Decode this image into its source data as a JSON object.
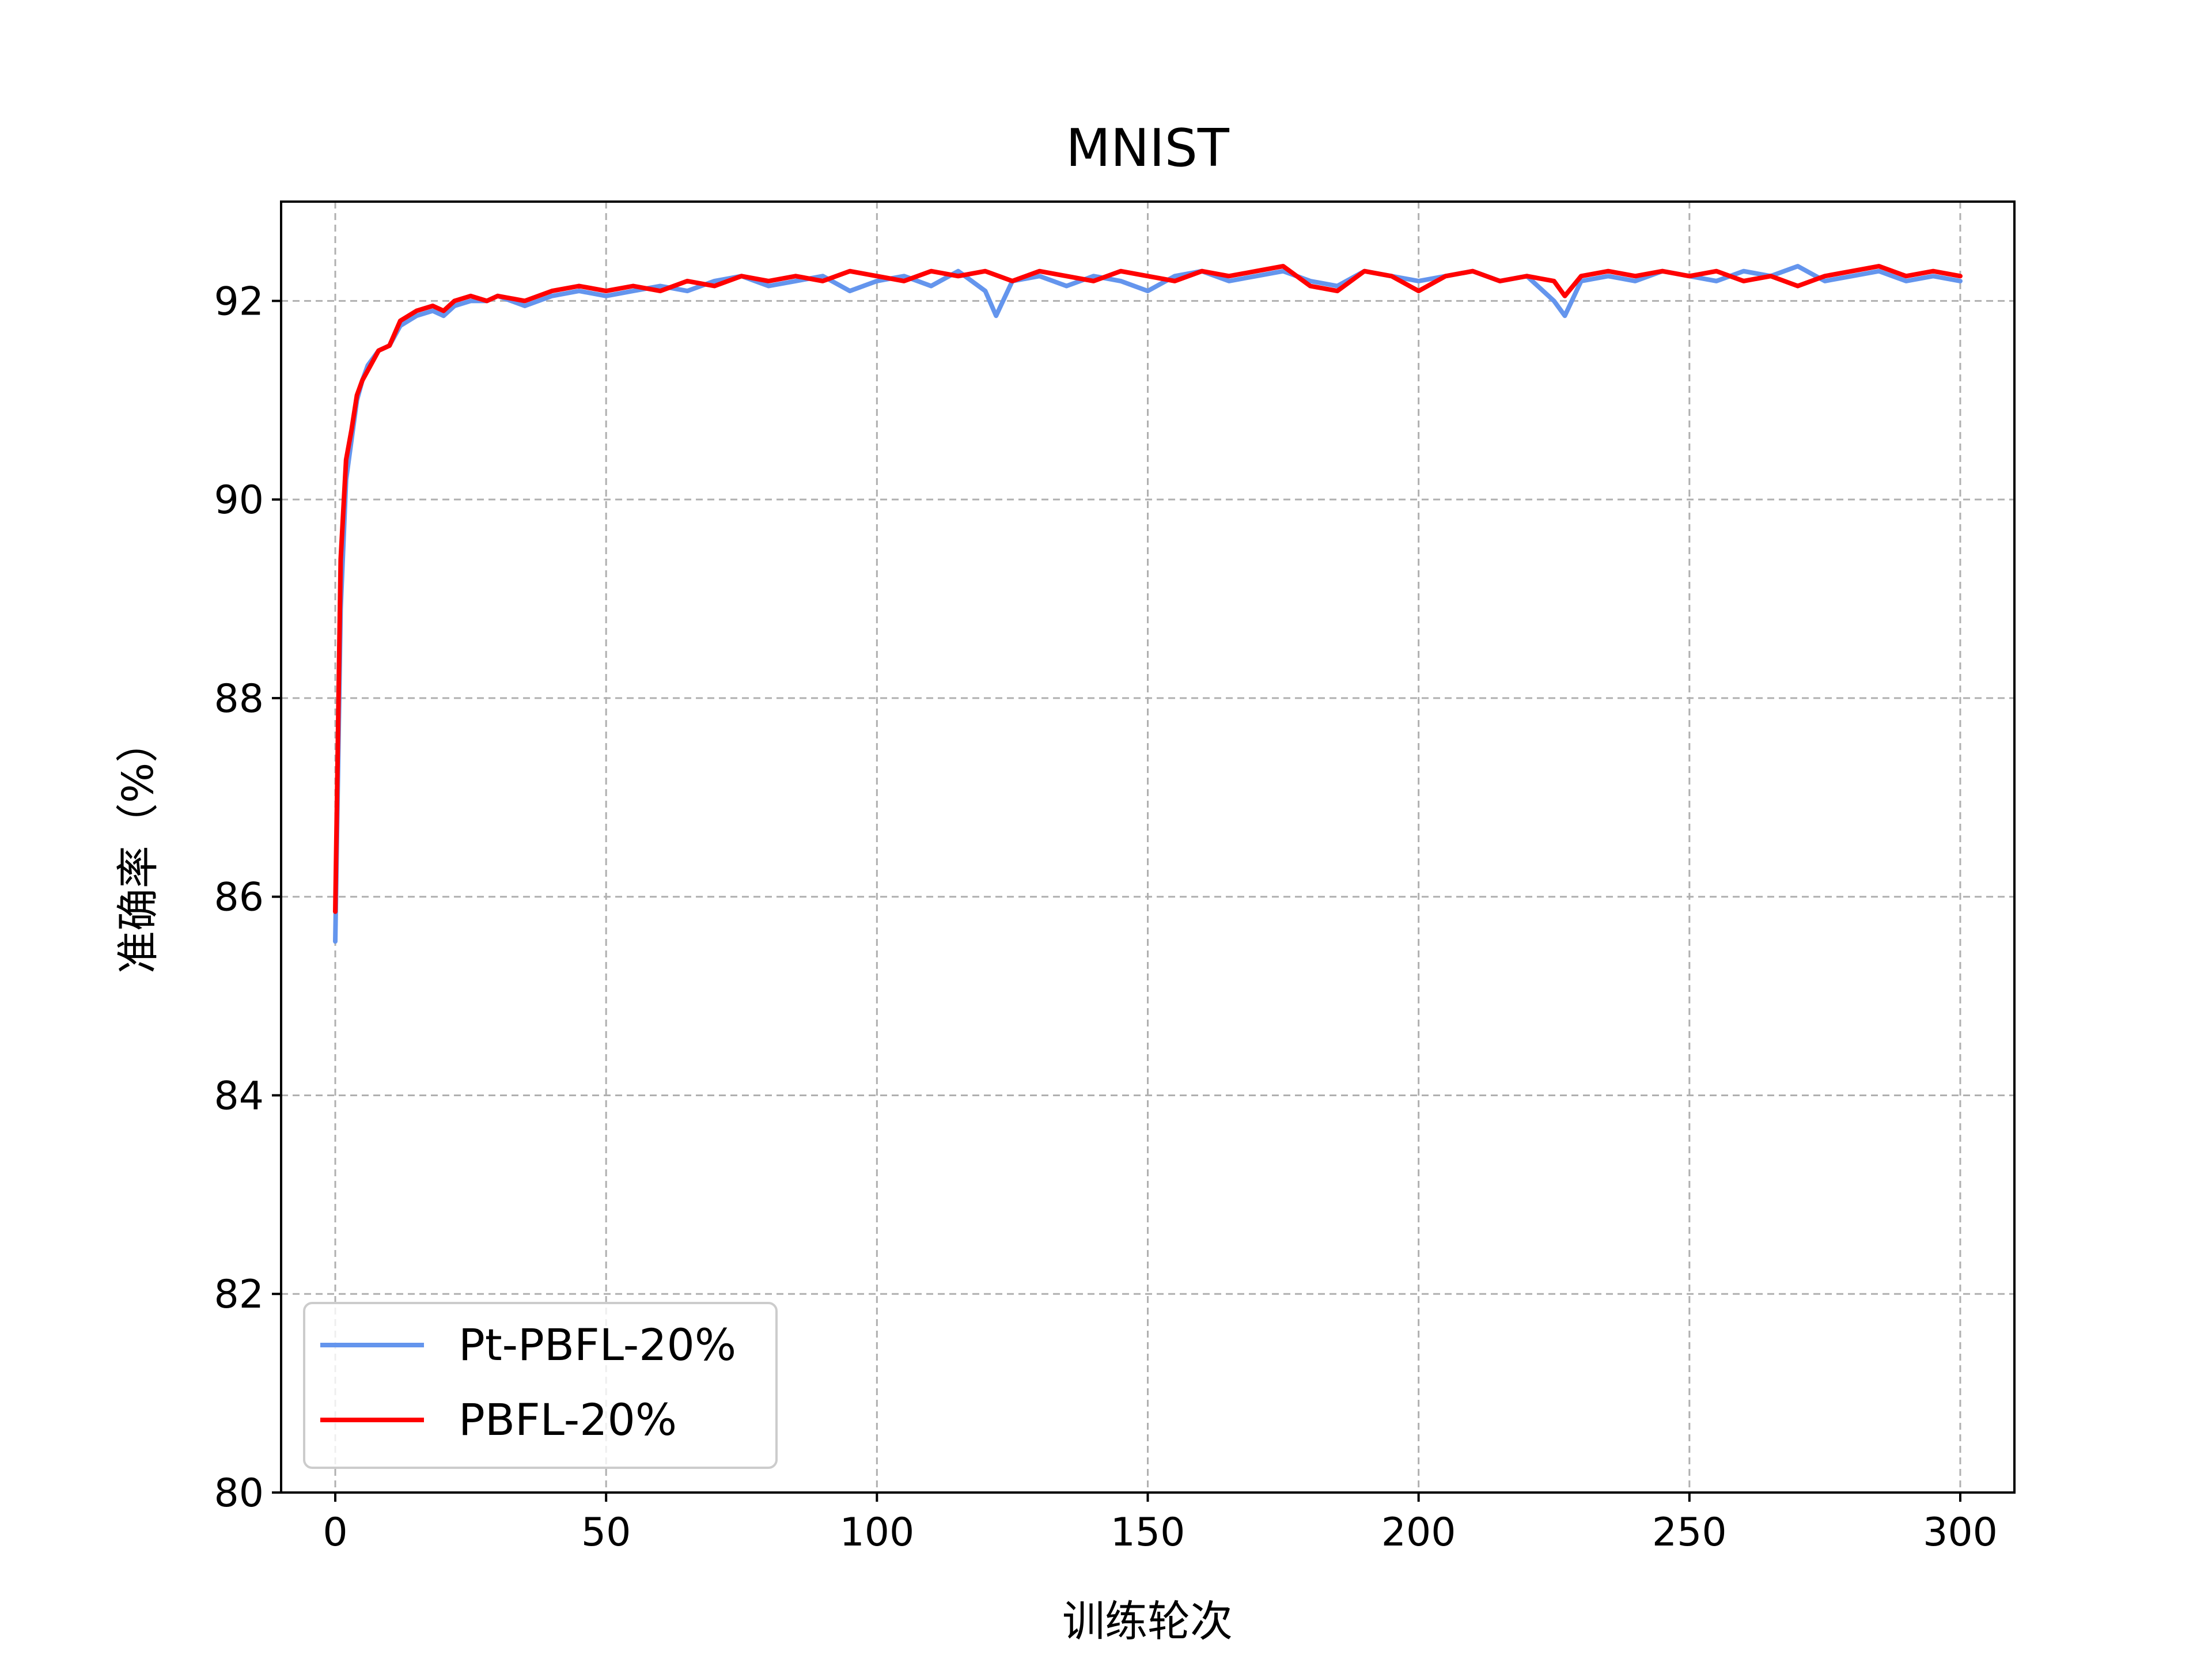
{
  "chart_data": {
    "type": "line",
    "title": "MNIST",
    "xlabel": "训练轮次",
    "ylabel": "准确率（%）",
    "xlim": [
      -10,
      310
    ],
    "ylim": [
      80,
      93
    ],
    "xticks": [
      0,
      50,
      100,
      150,
      200,
      250,
      300
    ],
    "yticks": [
      80,
      82,
      84,
      86,
      88,
      90,
      92
    ],
    "grid": true,
    "legend_position": "lower-left",
    "series": [
      {
        "name": "Pt-PBFL-20%",
        "color": "#6495ED",
        "x": [
          0,
          1,
          2,
          3,
          4,
          5,
          6,
          8,
          10,
          12,
          15,
          18,
          20,
          22,
          25,
          28,
          30,
          35,
          40,
          45,
          50,
          55,
          60,
          65,
          70,
          75,
          80,
          85,
          90,
          95,
          100,
          105,
          110,
          115,
          120,
          122,
          125,
          130,
          135,
          140,
          145,
          150,
          155,
          160,
          165,
          170,
          175,
          180,
          185,
          190,
          195,
          200,
          205,
          210,
          215,
          220,
          225,
          227,
          230,
          235,
          240,
          245,
          250,
          255,
          260,
          265,
          270,
          275,
          280,
          285,
          290,
          295,
          300
        ],
        "y": [
          85.55,
          88.9,
          90.2,
          90.6,
          91.0,
          91.2,
          91.35,
          91.5,
          91.55,
          91.75,
          91.85,
          91.9,
          91.85,
          91.95,
          92.0,
          92.0,
          92.05,
          91.95,
          92.05,
          92.1,
          92.05,
          92.1,
          92.15,
          92.1,
          92.2,
          92.25,
          92.15,
          92.2,
          92.25,
          92.1,
          92.2,
          92.25,
          92.15,
          92.3,
          92.1,
          91.85,
          92.2,
          92.25,
          92.15,
          92.25,
          92.2,
          92.1,
          92.25,
          92.3,
          92.2,
          92.25,
          92.3,
          92.2,
          92.15,
          92.3,
          92.25,
          92.2,
          92.25,
          92.3,
          92.2,
          92.25,
          92.0,
          91.85,
          92.2,
          92.25,
          92.2,
          92.3,
          92.25,
          92.2,
          92.3,
          92.25,
          92.35,
          92.2,
          92.25,
          92.3,
          92.2,
          92.25,
          92.2
        ]
      },
      {
        "name": "PBFL-20%",
        "color": "#FF0000",
        "x": [
          0,
          1,
          2,
          3,
          4,
          5,
          6,
          8,
          10,
          12,
          15,
          18,
          20,
          22,
          25,
          28,
          30,
          35,
          40,
          45,
          50,
          55,
          60,
          65,
          70,
          75,
          80,
          85,
          90,
          95,
          100,
          105,
          110,
          115,
          120,
          125,
          130,
          135,
          140,
          145,
          150,
          155,
          160,
          165,
          170,
          175,
          180,
          185,
          190,
          195,
          200,
          205,
          210,
          215,
          220,
          225,
          227,
          230,
          235,
          240,
          245,
          250,
          255,
          260,
          265,
          270,
          275,
          280,
          285,
          290,
          295,
          300
        ],
        "y": [
          85.85,
          89.4,
          90.4,
          90.7,
          91.05,
          91.2,
          91.3,
          91.5,
          91.55,
          91.8,
          91.9,
          91.95,
          91.9,
          92.0,
          92.05,
          92.0,
          92.05,
          92.0,
          92.1,
          92.15,
          92.1,
          92.15,
          92.1,
          92.2,
          92.15,
          92.25,
          92.2,
          92.25,
          92.2,
          92.3,
          92.25,
          92.2,
          92.3,
          92.25,
          92.3,
          92.2,
          92.3,
          92.25,
          92.2,
          92.3,
          92.25,
          92.2,
          92.3,
          92.25,
          92.3,
          92.35,
          92.15,
          92.1,
          92.3,
          92.25,
          92.1,
          92.25,
          92.3,
          92.2,
          92.25,
          92.2,
          92.05,
          92.25,
          92.3,
          92.25,
          92.3,
          92.25,
          92.3,
          92.2,
          92.25,
          92.15,
          92.25,
          92.3,
          92.35,
          92.25,
          92.3,
          92.25
        ]
      }
    ]
  }
}
